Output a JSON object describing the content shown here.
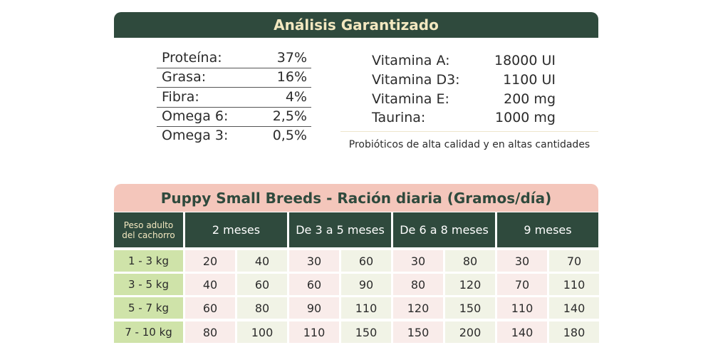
{
  "analysis": {
    "title": "Análisis Garantizado",
    "nutrients": [
      {
        "label": "Proteína:",
        "value": "37%"
      },
      {
        "label": "Grasa:",
        "value": "16%"
      },
      {
        "label": "Fibra:",
        "value": "4%"
      },
      {
        "label": "Omega 6:",
        "value": "2,5%"
      },
      {
        "label": "Omega 3:",
        "value": "0,5%"
      }
    ],
    "vitamins": [
      {
        "label": "Vitamina A:",
        "value": "18000 UI"
      },
      {
        "label": "Vitamina D3:",
        "value": "1100 UI"
      },
      {
        "label": "Vitamina E:",
        "value": "200 mg"
      },
      {
        "label": "Taurina:",
        "value": "1000 mg"
      }
    ],
    "note": "Probióticos de alta calidad y en altas cantidades"
  },
  "ration": {
    "title": "Puppy Small Breeds - Ración diaria (Gramos/día)",
    "header": {
      "corner": "Peso adulto del cachorro",
      "columns": [
        "2 meses",
        "De 3 a 5 meses",
        "De 6 a 8 meses",
        "9 meses"
      ]
    },
    "rows": [
      {
        "weight": "1 - 3 kg",
        "values": [
          "20",
          "40",
          "30",
          "60",
          "30",
          "80",
          "30",
          "70"
        ]
      },
      {
        "weight": "3 - 5 kg",
        "values": [
          "40",
          "60",
          "60",
          "90",
          "80",
          "120",
          "70",
          "110"
        ]
      },
      {
        "weight": "5 - 7 kg",
        "values": [
          "60",
          "80",
          "90",
          "110",
          "120",
          "150",
          "110",
          "140"
        ]
      },
      {
        "weight": "7 - 10 kg",
        "values": [
          "80",
          "100",
          "110",
          "150",
          "150",
          "200",
          "140",
          "180"
        ]
      }
    ]
  }
}
